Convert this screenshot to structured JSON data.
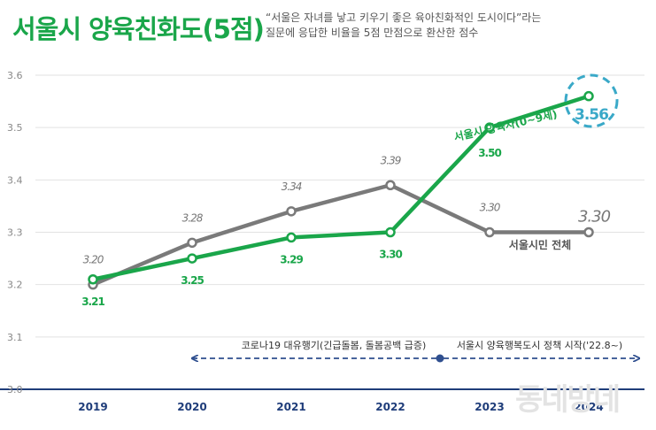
{
  "header": {
    "title": "서울시 양육친화도(5점)",
    "subtitle_line1": "“서울은 자녀를 낳고 키우기 좋은 육아친화적인 도시이다”라는",
    "subtitle_line2": "질문에 응답한 비율을 5점 만점으로 환산한 점수"
  },
  "watermark": "동네방네",
  "colors": {
    "parents": "#1aa64a",
    "all": "#7a7a7a",
    "axis": "#1f3d7a",
    "highlight": "#3aa9c8",
    "arrow": "#2f4f8f",
    "grid": "#e2e2e2"
  },
  "chart_data": {
    "type": "line",
    "x": [
      "2019",
      "2020",
      "2021",
      "2022",
      "2023",
      "2024"
    ],
    "ylim": [
      3.0,
      3.6
    ],
    "yticks": [
      "3.0",
      "3.1",
      "3.2",
      "3.3",
      "3.4",
      "3.5",
      "3.6"
    ],
    "grid": true,
    "series": [
      {
        "name": "서울시 양육자(0~9세)",
        "color": "#1aa64a",
        "values": [
          3.21,
          3.25,
          3.29,
          3.3,
          3.5,
          3.56
        ],
        "labels": [
          "3.21",
          "3.25",
          "3.29",
          "3.30",
          "3.50",
          "3.56"
        ]
      },
      {
        "name": "서울시민 전체",
        "color": "#7a7a7a",
        "values": [
          3.2,
          3.28,
          3.34,
          3.39,
          3.3,
          3.3
        ],
        "labels": [
          "3.20",
          "3.28",
          "3.34",
          "3.39",
          "3.30",
          "3.30"
        ]
      }
    ],
    "annotations": [
      {
        "text": "코로나19 대유행기(긴급돌봄, 돌봄공백 급증)",
        "from": "2020",
        "to": "2022.5"
      },
      {
        "text": "서울시 양육행복도시 정책 시작('22.8~)",
        "from": "2022.5",
        "to": "2024"
      }
    ]
  }
}
